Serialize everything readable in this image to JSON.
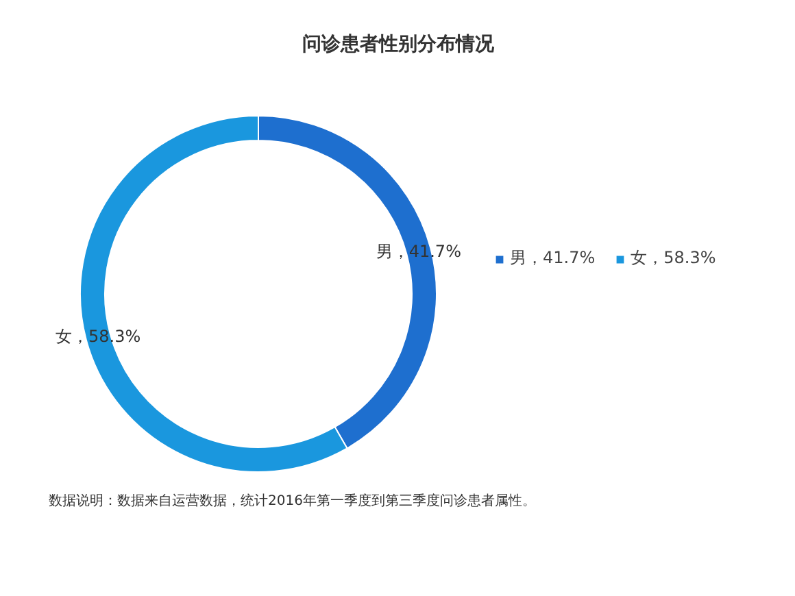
{
  "chart_data": {
    "type": "donut",
    "title": "问诊患者性别分布情况",
    "categories": [
      "男，41.7%",
      "女，58.3%"
    ],
    "values": [
      41.7,
      58.3
    ],
    "colors": [
      "#1e6fcf",
      "#1a97de"
    ],
    "legend": "right",
    "annotations": [
      "数据说明：数据来自运营数据，统计2016年第一季度到第三季度问诊患者属性。"
    ]
  }
}
